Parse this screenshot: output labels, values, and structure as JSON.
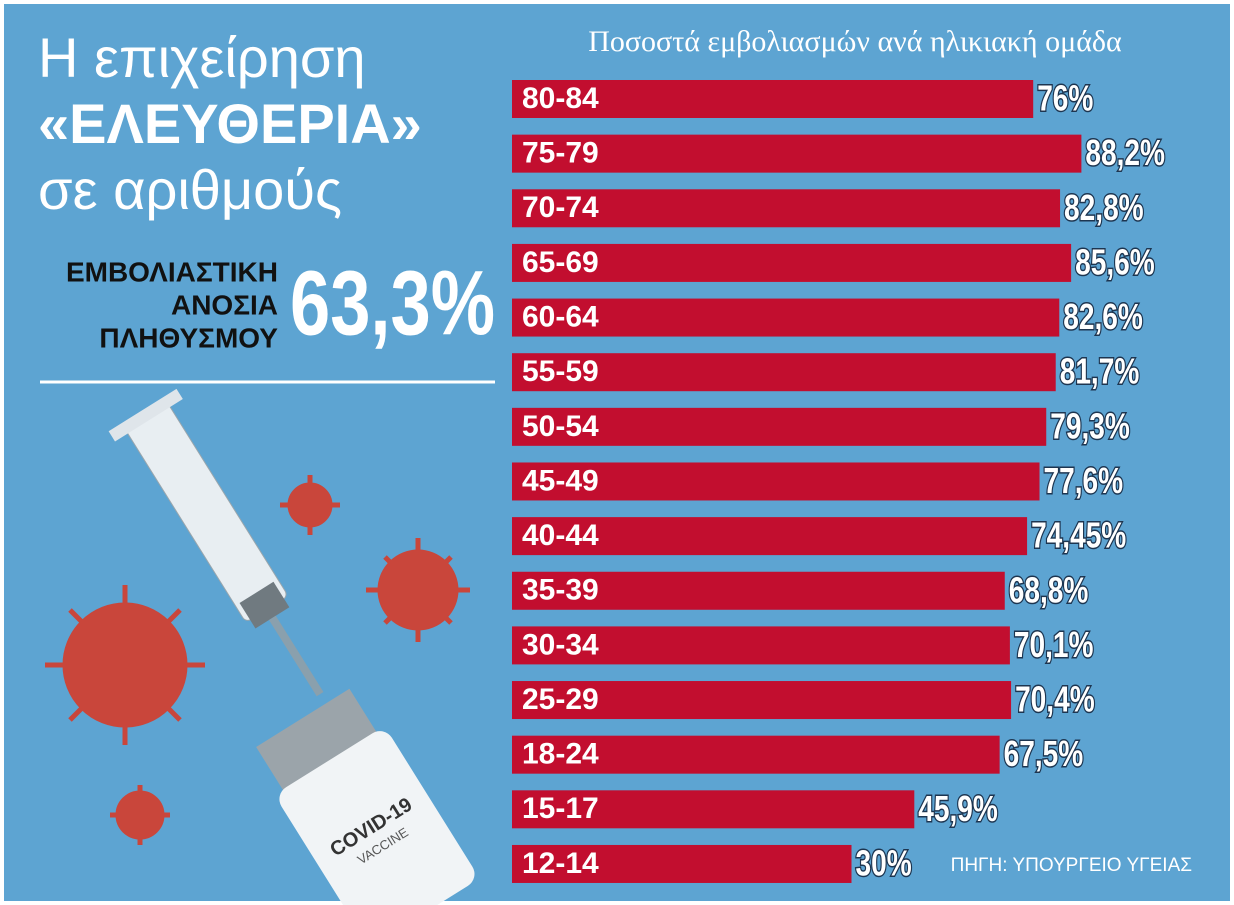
{
  "chart_data": {
    "type": "hbar",
    "title": "Ποσοστά εμβολιασμών ανά ηλικιακή ομάδα",
    "categories": [
      "80-84",
      "75-79",
      "70-74",
      "65-69",
      "60-64",
      "55-59",
      "50-54",
      "45-49",
      "40-44",
      "35-39",
      "30-34",
      "25-29",
      "18-24",
      "15-17",
      "12-14"
    ],
    "values": [
      76,
      88.2,
      82.8,
      85.6,
      82.6,
      81.7,
      79.3,
      77.6,
      74.45,
      68.8,
      70.1,
      70.4,
      67.5,
      45.9,
      30
    ],
    "value_labels": [
      "76%",
      "88,2%",
      "82,8%",
      "85,6%",
      "82,6%",
      "81,7%",
      "79,3%",
      "77,6%",
      "74,45%",
      "68,8%",
      "70,1%",
      "70,4%",
      "67,5%",
      "45,9%",
      "30%"
    ],
    "color": "#c20e2f",
    "source": "ΠΗΓΗ: ΥΠΟΥΡΓΕΙΟ ΥΓΕΙΑΣ"
  },
  "header": {
    "line1": "Η επιχείρηση",
    "line2": "«ΕΛΕΥΘΕΡΙΑ»",
    "line3": "σε αριθμούς"
  },
  "stat": {
    "label1": "ΕΜΒΟΛΙΑΣΤΙΚΗ",
    "label2": "ΑΝΟΣΙΑ",
    "label3": "ΠΛΗΘΥΣΜΟΥ",
    "value": "63,3%"
  },
  "illustration": {
    "vial_label1": "COVID-19",
    "vial_label2": "VACCINE"
  }
}
